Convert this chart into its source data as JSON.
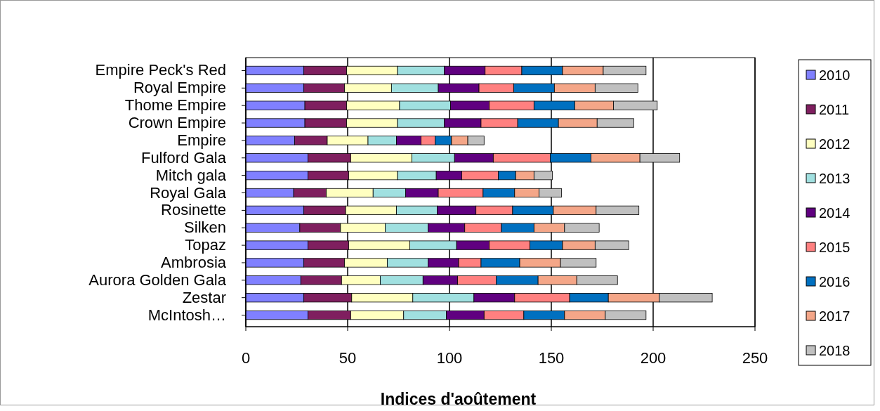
{
  "chart_data": {
    "type": "bar",
    "orientation": "horizontal",
    "stacked": true,
    "xlabel": "Indices d'aoûtement",
    "categories": [
      "Empire Peck's Red",
      "Royal Empire",
      "Thome Empire",
      "Crown Empire",
      "Empire",
      "Fulford Gala",
      "Mitch gala",
      "Royal Gala",
      "Rosinette",
      "Silken",
      "Topaz",
      "Ambrosia",
      "Aurora Golden Gala",
      "Zestar",
      "McIntosh…"
    ],
    "series": [
      {
        "name": "2010",
        "color": "#8080ff",
        "values": [
          28.5,
          28.5,
          29,
          29,
          24,
          30.5,
          30.5,
          23.5,
          28.5,
          26.5,
          30.5,
          28.5,
          27,
          28.5,
          30.5
        ]
      },
      {
        "name": "2011",
        "color": "#7f1f5f",
        "values": [
          21,
          20,
          20.5,
          20.5,
          16,
          21,
          20,
          16,
          20.5,
          20,
          20,
          20,
          20,
          23.5,
          21
        ]
      },
      {
        "name": "2012",
        "color": "#ffffc0",
        "values": [
          25,
          23,
          26,
          25,
          20,
          30,
          24,
          23,
          25,
          22,
          30,
          21,
          19,
          30,
          26
        ]
      },
      {
        "name": "2013",
        "color": "#a0e0e0",
        "values": [
          23,
          23,
          25,
          23,
          14,
          21,
          19,
          16,
          20,
          21,
          23,
          20,
          21,
          30,
          21
        ]
      },
      {
        "name": "2014",
        "color": "#600080",
        "values": [
          20,
          20,
          19,
          18,
          12,
          19,
          12.5,
          16,
          19,
          18,
          16,
          15,
          17,
          20,
          18.5
        ]
      },
      {
        "name": "2015",
        "color": "#ff8080",
        "values": [
          18,
          17,
          22,
          18,
          7,
          28,
          18,
          22,
          18,
          18,
          20,
          11,
          19,
          27,
          19.5
        ]
      },
      {
        "name": "2016",
        "color": "#0070c0",
        "values": [
          20,
          20,
          20,
          20,
          8,
          20,
          8.5,
          15.5,
          20,
          16,
          16,
          19,
          20.5,
          19,
          20
        ]
      },
      {
        "name": "2017",
        "color": "#f4a688",
        "values": [
          20,
          20,
          19,
          19,
          8,
          24,
          9,
          12,
          21,
          15,
          16,
          20,
          19,
          25,
          20
        ]
      },
      {
        "name": "2018",
        "color": "#c0c0c0",
        "values": [
          21,
          21,
          21.5,
          18,
          8,
          19.5,
          9,
          11,
          21,
          17,
          16.5,
          17.5,
          20,
          26,
          20
        ]
      }
    ],
    "xlim": [
      0,
      250
    ],
    "xticks": [
      0,
      50,
      100,
      150,
      200,
      250
    ],
    "grid": "x",
    "legend": "right"
  }
}
